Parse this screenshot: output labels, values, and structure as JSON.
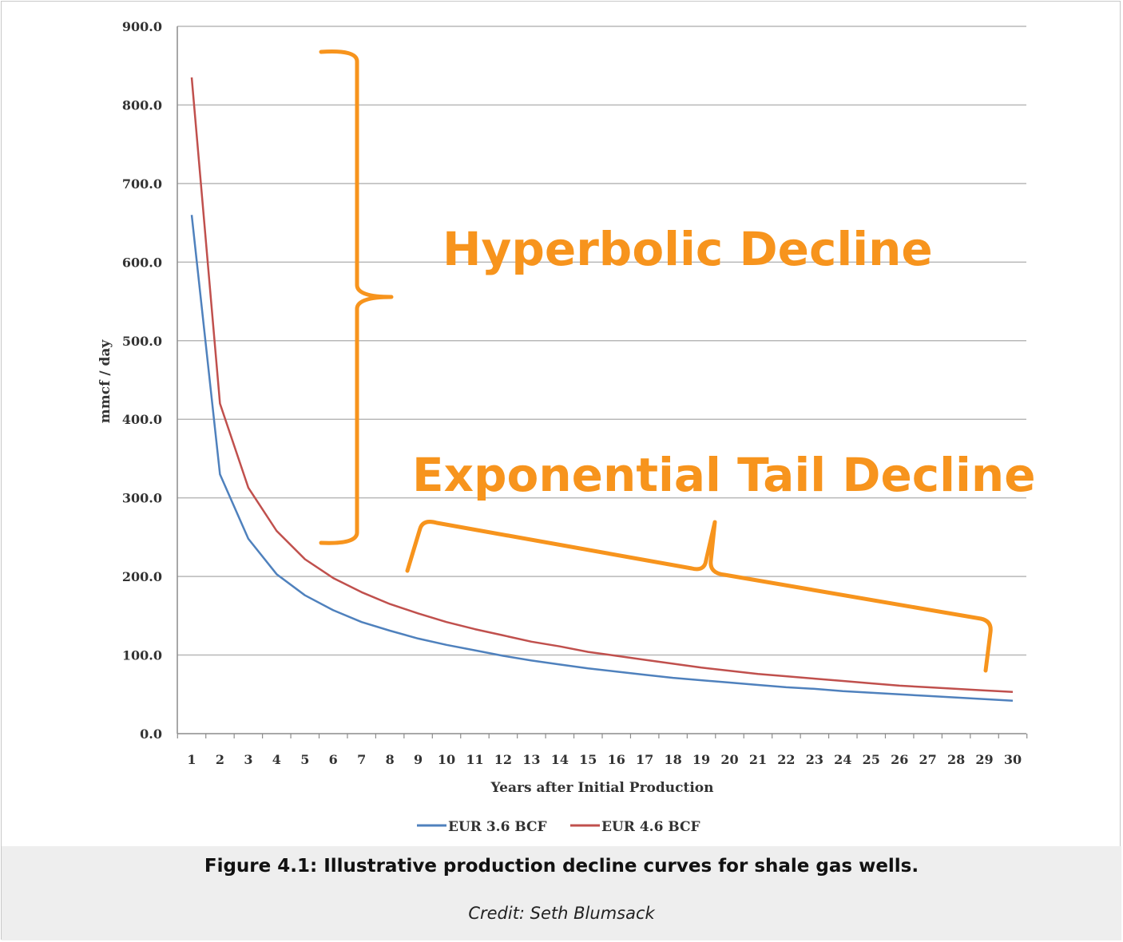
{
  "caption": {
    "title": "Figure 4.1: Illustrative production decline curves for shale gas wells.",
    "credit": "Credit: Seth Blumsack"
  },
  "chart_data": {
    "type": "line",
    "title": "",
    "xlabel": "Years after Initial Production",
    "ylabel": "mmcf / day",
    "ylim": [
      0,
      900
    ],
    "yticks": [
      "0.0",
      "100.0",
      "200.0",
      "300.0",
      "400.0",
      "500.0",
      "600.0",
      "700.0",
      "800.0",
      "900.0"
    ],
    "x": [
      1,
      2,
      3,
      4,
      5,
      6,
      7,
      8,
      9,
      10,
      11,
      12,
      13,
      14,
      15,
      16,
      17,
      18,
      19,
      20,
      21,
      22,
      23,
      24,
      25,
      26,
      27,
      28,
      29,
      30
    ],
    "grid": true,
    "legend_position": "bottom",
    "series": [
      {
        "name": "EUR 3.6 BCF",
        "color": "#4f81bd",
        "values": [
          660,
          330,
          248,
          203,
          176,
          157,
          142,
          131,
          121,
          113,
          106,
          99,
          93,
          88,
          83,
          79,
          75,
          71,
          68,
          65,
          62,
          59,
          57,
          54,
          52,
          50,
          48,
          46,
          44,
          42
        ]
      },
      {
        "name": "EUR 4.6 BCF",
        "color": "#c0504d",
        "values": [
          835,
          420,
          313,
          258,
          222,
          198,
          180,
          165,
          153,
          142,
          133,
          125,
          117,
          111,
          104,
          99,
          94,
          89,
          84,
          80,
          76,
          73,
          70,
          67,
          64,
          61,
          59,
          57,
          55,
          53
        ]
      }
    ],
    "annotations": [
      {
        "text": "Hyperbolic Decline",
        "color": "#f7941d"
      },
      {
        "text": "Exponential Tail Decline",
        "color": "#f7941d"
      }
    ]
  }
}
